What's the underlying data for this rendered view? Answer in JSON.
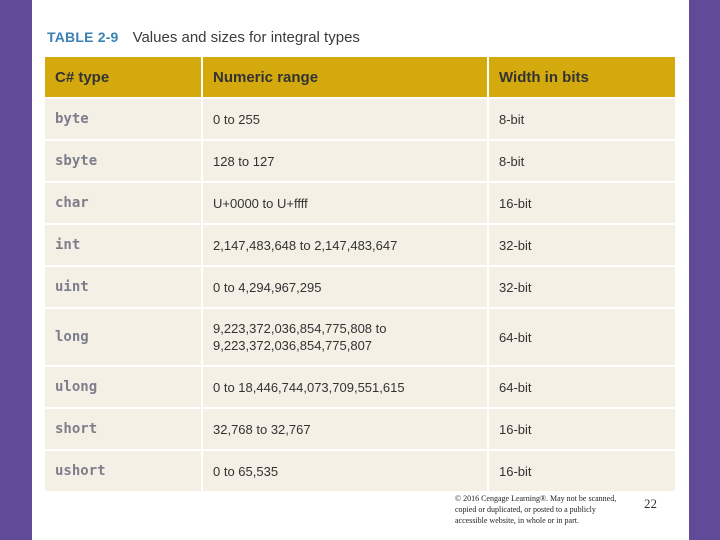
{
  "slide": {
    "title_tag": "TABLE 2-9",
    "title_text": "Values and sizes for integral types"
  },
  "table": {
    "headers": [
      "C# type",
      "Numeric range",
      "Width in bits"
    ],
    "rows": [
      {
        "type": "byte",
        "range": "0 to 255",
        "width": "8-bit"
      },
      {
        "type": "sbyte",
        "range": "128 to 127",
        "width": "8-bit"
      },
      {
        "type": "char",
        "range": "U+0000 to U+ffff",
        "width": "16-bit"
      },
      {
        "type": "int",
        "range": "2,147,483,648 to 2,147,483,647",
        "width": "32-bit"
      },
      {
        "type": "uint",
        "range": "0 to 4,294,967,295",
        "width": "32-bit"
      },
      {
        "type": "long",
        "range_line1": "9,223,372,036,854,775,808 to",
        "range_line2": "9,223,372,036,854,775,807",
        "width": "64-bit"
      },
      {
        "type": "ulong",
        "range": "0 to 18,446,744,073,709,551,615",
        "width": "64-bit"
      },
      {
        "type": "short",
        "range": "32,768 to 32,767",
        "width": "16-bit"
      },
      {
        "type": "ushort",
        "range": "0 to 65,535",
        "width": "16-bit"
      }
    ]
  },
  "footer": {
    "copyright_line1": "© 2016 Cengage Learning®. May not be scanned,",
    "copyright_line2": "copied or duplicated, or posted to a publicly",
    "copyright_line3": "accessible website, in whole or in part.",
    "page_number": "22"
  },
  "colors": {
    "side_bar": "#5f4b97",
    "header_fill": "#d3a90d",
    "row_fill": "#f4f0e5",
    "title_tag": "#3a82b6"
  }
}
